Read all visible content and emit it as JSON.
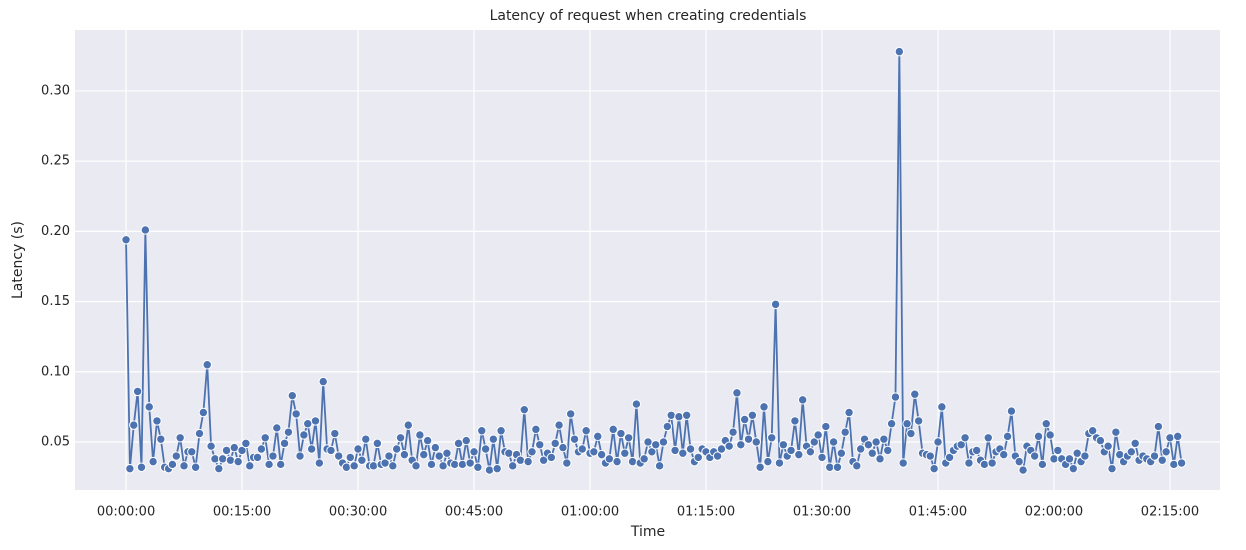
{
  "chart_data": {
    "type": "line",
    "title": "Latency of request when creating credentials",
    "xlabel": "Time",
    "ylabel": "Latency (s)",
    "grid": true,
    "xlim": [
      -396,
      8488
    ],
    "ylim": [
      0.0158,
      0.3434
    ],
    "xticks": [
      {
        "value": 0,
        "label": "00:00:00"
      },
      {
        "value": 900,
        "label": "00:15:00"
      },
      {
        "value": 1800,
        "label": "00:30:00"
      },
      {
        "value": 2700,
        "label": "00:45:00"
      },
      {
        "value": 3600,
        "label": "01:00:00"
      },
      {
        "value": 4500,
        "label": "01:15:00"
      },
      {
        "value": 5400,
        "label": "01:30:00"
      },
      {
        "value": 6300,
        "label": "01:45:00"
      },
      {
        "value": 7200,
        "label": "02:00:00"
      },
      {
        "value": 8100,
        "label": "02:15:00"
      }
    ],
    "yticks": [
      0.05,
      {
        "value": 0.1,
        "label": "0.10"
      },
      0.15,
      {
        "value": 0.2,
        "label": "0.20"
      },
      0.25,
      {
        "value": 0.3,
        "label": "0.30"
      }
    ],
    "x": [
      0,
      30,
      60,
      90,
      120,
      150,
      180,
      210,
      240,
      270,
      300,
      330,
      360,
      390,
      420,
      450,
      480,
      510,
      540,
      570,
      600,
      630,
      660,
      690,
      720,
      750,
      780,
      810,
      840,
      870,
      900,
      930,
      960,
      990,
      1020,
      1050,
      1080,
      1110,
      1140,
      1170,
      1200,
      1230,
      1260,
      1290,
      1320,
      1350,
      1380,
      1410,
      1440,
      1470,
      1500,
      1530,
      1560,
      1590,
      1620,
      1650,
      1680,
      1710,
      1740,
      1770,
      1800,
      1830,
      1860,
      1890,
      1920,
      1950,
      1980,
      2010,
      2040,
      2070,
      2100,
      2130,
      2160,
      2190,
      2220,
      2250,
      2280,
      2310,
      2340,
      2370,
      2400,
      2430,
      2460,
      2490,
      2520,
      2550,
      2580,
      2610,
      2640,
      2670,
      2700,
      2730,
      2760,
      2790,
      2820,
      2850,
      2880,
      2910,
      2940,
      2970,
      3000,
      3030,
      3060,
      3090,
      3120,
      3150,
      3180,
      3210,
      3240,
      3270,
      3300,
      3330,
      3360,
      3390,
      3420,
      3450,
      3480,
      3510,
      3540,
      3570,
      3600,
      3630,
      3660,
      3690,
      3720,
      3750,
      3780,
      3810,
      3840,
      3870,
      3900,
      3930,
      3960,
      3990,
      4020,
      4050,
      4080,
      4110,
      4140,
      4170,
      4200,
      4230,
      4260,
      4290,
      4320,
      4350,
      4380,
      4410,
      4440,
      4470,
      4500,
      4530,
      4560,
      4590,
      4620,
      4650,
      4680,
      4710,
      4740,
      4770,
      4800,
      4830,
      4860,
      4890,
      4920,
      4950,
      4980,
      5010,
      5040,
      5070,
      5100,
      5130,
      5160,
      5190,
      5220,
      5250,
      5280,
      5310,
      5340,
      5370,
      5400,
      5430,
      5460,
      5490,
      5520,
      5550,
      5580,
      5610,
      5640,
      5670,
      5700,
      5730,
      5760,
      5790,
      5820,
      5850,
      5880,
      5910,
      5940,
      5970,
      6000,
      6030,
      6060,
      6090,
      6120,
      6150,
      6180,
      6210,
      6240,
      6270,
      6300,
      6330,
      6360,
      6390,
      6420,
      6450,
      6480,
      6510,
      6540,
      6570,
      6600,
      6630,
      6660,
      6690,
      6720,
      6750,
      6780,
      6810,
      6840,
      6870,
      6900,
      6930,
      6960,
      6990,
      7020,
      7050,
      7080,
      7110,
      7140,
      7170,
      7200,
      7230,
      7260,
      7290,
      7320,
      7350,
      7380,
      7410,
      7440,
      7470,
      7500,
      7530,
      7560,
      7590,
      7620,
      7650,
      7680,
      7710,
      7740,
      7770,
      7800,
      7830,
      7860,
      7890,
      7920,
      7950,
      7980,
      8010,
      8040,
      8070,
      8100,
      8130,
      8160,
      8190
    ],
    "series": [
      {
        "color": "#4c72b0",
        "values": [
          0.194,
          0.031,
          0.062,
          0.086,
          0.032,
          0.201,
          0.075,
          0.036,
          0.065,
          0.052,
          0.032,
          0.031,
          0.034,
          0.04,
          0.053,
          0.033,
          0.043,
          0.043,
          0.032,
          0.056,
          0.071,
          0.105,
          0.047,
          0.038,
          0.031,
          0.038,
          0.044,
          0.037,
          0.046,
          0.036,
          0.044,
          0.049,
          0.033,
          0.039,
          0.039,
          0.045,
          0.053,
          0.034,
          0.04,
          0.06,
          0.034,
          0.049,
          0.057,
          0.083,
          0.07,
          0.04,
          0.055,
          0.063,
          0.045,
          0.065,
          0.035,
          0.093,
          0.045,
          0.044,
          0.056,
          0.04,
          0.035,
          0.032,
          0.039,
          0.033,
          0.045,
          0.037,
          0.052,
          0.033,
          0.033,
          0.049,
          0.034,
          0.035,
          0.04,
          0.033,
          0.045,
          0.053,
          0.041,
          0.062,
          0.037,
          0.033,
          0.055,
          0.041,
          0.051,
          0.034,
          0.046,
          0.04,
          0.033,
          0.042,
          0.035,
          0.034,
          0.049,
          0.034,
          0.051,
          0.035,
          0.043,
          0.032,
          0.058,
          0.045,
          0.03,
          0.052,
          0.031,
          0.058,
          0.043,
          0.042,
          0.033,
          0.041,
          0.037,
          0.073,
          0.036,
          0.043,
          0.059,
          0.048,
          0.037,
          0.042,
          0.039,
          0.049,
          0.062,
          0.046,
          0.035,
          0.07,
          0.052,
          0.043,
          0.045,
          0.058,
          0.042,
          0.043,
          0.054,
          0.041,
          0.035,
          0.038,
          0.059,
          0.036,
          0.056,
          0.042,
          0.053,
          0.036,
          0.077,
          0.035,
          0.038,
          0.05,
          0.043,
          0.048,
          0.033,
          0.05,
          0.061,
          0.069,
          0.044,
          0.068,
          0.042,
          0.069,
          0.045,
          0.036,
          0.039,
          0.045,
          0.043,
          0.039,
          0.043,
          0.04,
          0.045,
          0.051,
          0.047,
          0.057,
          0.085,
          0.048,
          0.066,
          0.052,
          0.069,
          0.05,
          0.032,
          0.075,
          0.036,
          0.053,
          0.148,
          0.035,
          0.048,
          0.04,
          0.044,
          0.065,
          0.041,
          0.08,
          0.047,
          0.043,
          0.05,
          0.055,
          0.039,
          0.061,
          0.032,
          0.05,
          0.032,
          0.042,
          0.057,
          0.071,
          0.036,
          0.033,
          0.045,
          0.052,
          0.048,
          0.042,
          0.05,
          0.038,
          0.052,
          0.044,
          0.063,
          0.082,
          0.328,
          0.035,
          0.063,
          0.056,
          0.084,
          0.065,
          0.042,
          0.041,
          0.04,
          0.031,
          0.05,
          0.075,
          0.035,
          0.039,
          0.044,
          0.047,
          0.048,
          0.053,
          0.035,
          0.043,
          0.044,
          0.037,
          0.034,
          0.053,
          0.035,
          0.043,
          0.045,
          0.041,
          0.054,
          0.072,
          0.04,
          0.036,
          0.03,
          0.047,
          0.044,
          0.04,
          0.054,
          0.034,
          0.063,
          0.055,
          0.038,
          0.044,
          0.038,
          0.034,
          0.038,
          0.031,
          0.042,
          0.036,
          0.04,
          0.056,
          0.058,
          0.053,
          0.051,
          0.043,
          0.047,
          0.031,
          0.057,
          0.041,
          0.036,
          0.04,
          0.043,
          0.049,
          0.037,
          0.04,
          0.038,
          0.036,
          0.04,
          0.061,
          0.037,
          0.043,
          0.053,
          0.034,
          0.054,
          0.035
        ]
      }
    ]
  }
}
